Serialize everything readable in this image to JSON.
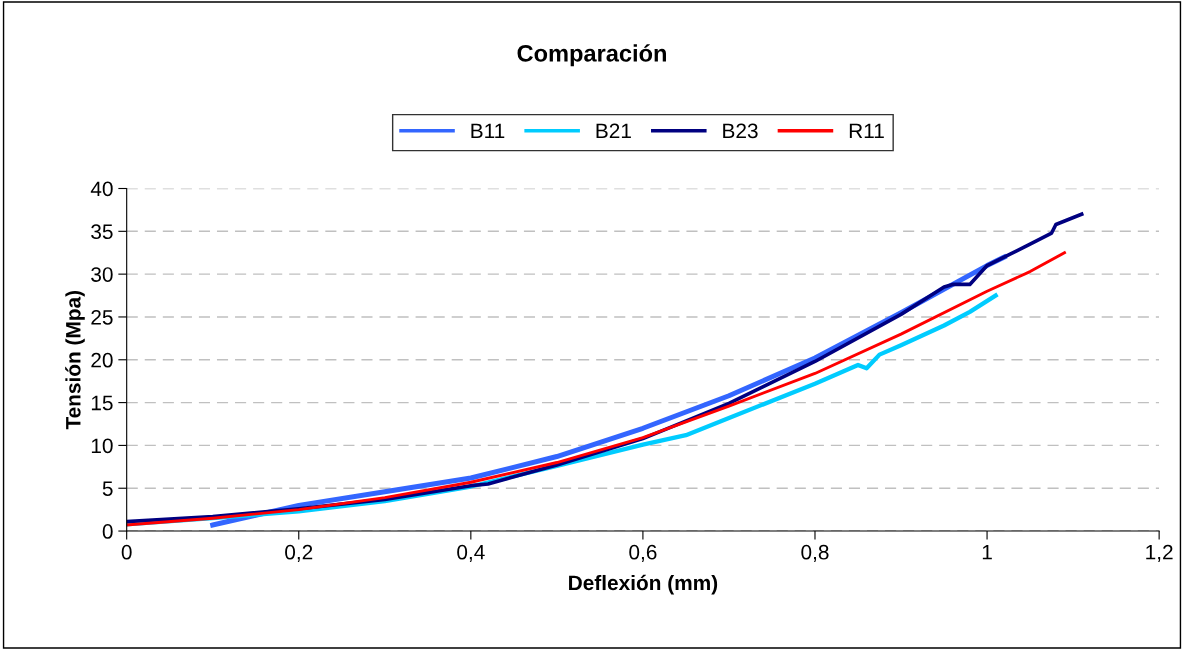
{
  "chart_data": {
    "type": "line",
    "title": "Comparación",
    "xlabel": "Deflexión (mm)",
    "ylabel": "Tensión (Mpa)",
    "xlim": [
      0,
      1.2
    ],
    "xticks": [
      0,
      {
        "value": 0.2,
        "label": "0,2"
      },
      {
        "value": 0.4,
        "label": "0,4"
      },
      {
        "value": 0.6,
        "label": "0,6"
      },
      {
        "value": 0.8,
        "label": "0,8"
      },
      1,
      {
        "value": 1.2,
        "label": "1,2"
      }
    ],
    "ylim": [
      0,
      40
    ],
    "yticks": [
      0,
      5,
      10,
      15,
      20,
      25,
      30,
      35,
      40
    ],
    "grid": "y",
    "legend": "top",
    "marker": "none",
    "line_style": "solid",
    "series": [
      {
        "name": "B11",
        "color": "#3366ff",
        "x": [
          0.1,
          0.2,
          0.3,
          0.4,
          0.5,
          0.6,
          0.7,
          0.8,
          0.9,
          1.0,
          1.02
        ],
        "values": [
          0.7,
          3.0,
          4.6,
          6.2,
          8.7,
          12.0,
          15.8,
          20.2,
          25.5,
          31.0,
          32.0
        ]
      },
      {
        "name": "B21",
        "color": "#00ccff",
        "x": [
          0,
          0.1,
          0.2,
          0.3,
          0.4,
          0.5,
          0.6,
          0.65,
          0.7,
          0.8,
          0.85,
          0.86,
          0.875,
          0.9,
          0.95,
          0.98,
          1.01
        ],
        "values": [
          0.8,
          1.5,
          2.3,
          3.5,
          5.2,
          7.6,
          10.1,
          11.2,
          13.2,
          17.2,
          19.4,
          19.0,
          20.6,
          21.7,
          24.0,
          25.6,
          27.5
        ]
      },
      {
        "name": "B23",
        "color": "#000080",
        "x": [
          0,
          0.1,
          0.2,
          0.3,
          0.4,
          0.42,
          0.5,
          0.6,
          0.7,
          0.8,
          0.9,
          0.95,
          0.96,
          0.98,
          1.0,
          1.05,
          1.075,
          1.08,
          1.11
        ],
        "values": [
          1.1,
          1.7,
          2.6,
          3.7,
          5.3,
          5.5,
          7.7,
          10.8,
          14.9,
          19.8,
          25.3,
          28.5,
          28.8,
          28.8,
          31.0,
          33.5,
          34.8,
          35.8,
          37.0
        ]
      },
      {
        "name": "R11",
        "color": "#ff0000",
        "x": [
          0,
          0.1,
          0.2,
          0.3,
          0.4,
          0.5,
          0.6,
          0.7,
          0.8,
          0.9,
          1.0,
          1.05,
          1.09
        ],
        "values": [
          0.7,
          1.5,
          2.5,
          3.9,
          5.7,
          8.0,
          10.9,
          14.6,
          18.4,
          23.0,
          28.0,
          30.3,
          32.5
        ]
      }
    ]
  }
}
